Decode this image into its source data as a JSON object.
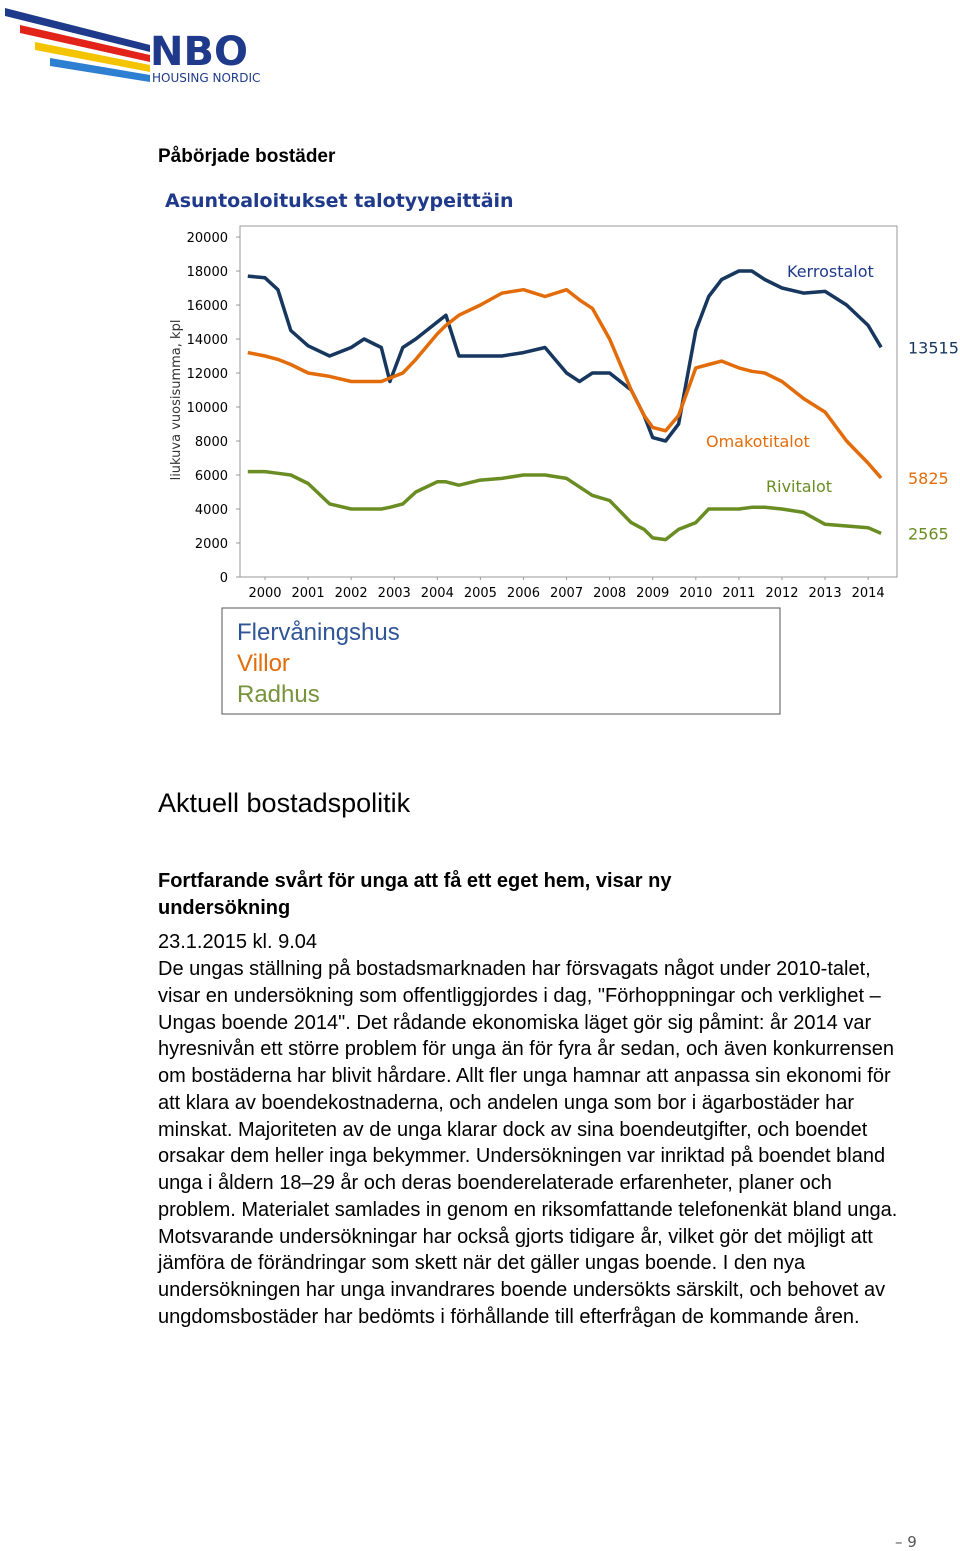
{
  "header": {
    "logo": "NBO",
    "logo_sub": "HOUSING NORDIC"
  },
  "section_title": "Påbörjade bostäder",
  "chart_data": {
    "type": "line",
    "title": "Asuntoaloitukset talotyypeittäin",
    "y_label": "liukuva vuosisumma, kpl",
    "x": [
      1999.6,
      2000.0,
      2000.3,
      2000.6,
      2001.0,
      2001.5,
      2002.0,
      2002.3,
      2002.7,
      2002.9,
      2003.2,
      2003.5,
      2004.0,
      2004.2,
      2004.5,
      2005.0,
      2005.5,
      2006.0,
      2006.5,
      2007.0,
      2007.3,
      2007.6,
      2008.0,
      2008.5,
      2008.8,
      2009.0,
      2009.3,
      2009.6,
      2010.0,
      2010.3,
      2010.6,
      2011.0,
      2011.3,
      2011.6,
      2012.0,
      2012.5,
      2013.0,
      2013.5,
      2014.0,
      2014.3
    ],
    "series": [
      {
        "name": "Kerrostalot",
        "color": "#17375e",
        "values": [
          17700,
          17600,
          16900,
          14500,
          13600,
          13000,
          13500,
          14000,
          13500,
          11500,
          13500,
          14000,
          15000,
          15400,
          13000,
          13000,
          13000,
          13200,
          13500,
          12000,
          11500,
          12000,
          12000,
          11000,
          9500,
          8200,
          8000,
          9000,
          14500,
          16500,
          17500,
          18000,
          18000,
          17500,
          17000,
          16700,
          16800,
          16000,
          14800,
          13515
        ]
      },
      {
        "name": "Omakotitalot",
        "color": "#e36c0a",
        "values": [
          13200,
          13000,
          12800,
          12500,
          12000,
          11800,
          11500,
          11500,
          11500,
          11700,
          12000,
          12800,
          14300,
          14800,
          15400,
          16000,
          16700,
          16900,
          16500,
          16900,
          16300,
          15800,
          14000,
          11000,
          9500,
          8800,
          8600,
          9500,
          12300,
          12500,
          12700,
          12300,
          12100,
          12000,
          11500,
          10500,
          9700,
          8000,
          6700,
          5825
        ]
      },
      {
        "name": "Rivitalot",
        "color": "#6a8d23",
        "values": [
          6200,
          6200,
          6100,
          6000,
          5500,
          4300,
          4000,
          4000,
          4000,
          4100,
          4300,
          5000,
          5600,
          5600,
          5400,
          5700,
          5800,
          6000,
          6000,
          5800,
          5300,
          4800,
          4500,
          3200,
          2800,
          2300,
          2200,
          2800,
          3200,
          4000,
          4000,
          4000,
          4100,
          4100,
          4000,
          3800,
          3100,
          3000,
          2900,
          2565
        ]
      }
    ],
    "xlim": [
      1999.42,
      2014.67
    ],
    "xticks": [
      2000,
      2001,
      2002,
      2003,
      2004,
      2005,
      2006,
      2007,
      2008,
      2009,
      2010,
      2011,
      2012,
      2013,
      2014
    ],
    "ylim": [
      0,
      20650
    ],
    "yticks": [
      0,
      2000,
      4000,
      6000,
      8000,
      10000,
      12000,
      14000,
      16000,
      18000,
      20000
    ],
    "legend": [
      {
        "label": "Flervåningshus",
        "color": "#2f5597"
      },
      {
        "label": "Villor",
        "color": "#e36c0a"
      },
      {
        "label": "Radhus",
        "color": "#77933c"
      }
    ]
  },
  "article": {
    "section": "Aktuell bostadspolitik",
    "headline": "Fortfarande svårt för unga att få ett eget hem, visar ny undersökning",
    "date": "23.1.2015 kl. 9.04",
    "body": "De ungas ställning på bostadsmarknaden har försvagats något under 2010-talet, visar en undersökning som offentliggjordes i dag, \"Förhoppningar och verklighet – Ungas boende 2014\". Det rådande ekonomiska läget gör sig påmint: år 2014 var hyresnivån ett större problem för unga än för fyra år sedan, och även konkurrensen om bostäderna har blivit hårdare. Allt fler unga hamnar att anpassa sin ekonomi för att klara av boendekostnaderna, och andelen unga som bor i ägarbostäder har minskat. Majoriteten av de unga klarar dock av sina boendeutgifter, och boendet orsakar dem heller inga bekymmer. Undersökningen var inriktad på boendet bland unga i åldern 18–29 år och deras boenderelaterade erfarenheter, planer och problem. Materialet samlades in genom en riksomfattande telefonenkät bland unga. Motsvarande undersökningar har också gjorts tidigare år, vilket gör det möjligt att jämföra de förändringar som skett när det gäller ungas boende. I den nya undersökningen har unga invandrares boende undersökts särskilt, och behovet av ungdomsbostäder har bedömts i förhållande till efterfrågan de kommande åren."
  },
  "footer": {
    "page": "9"
  }
}
